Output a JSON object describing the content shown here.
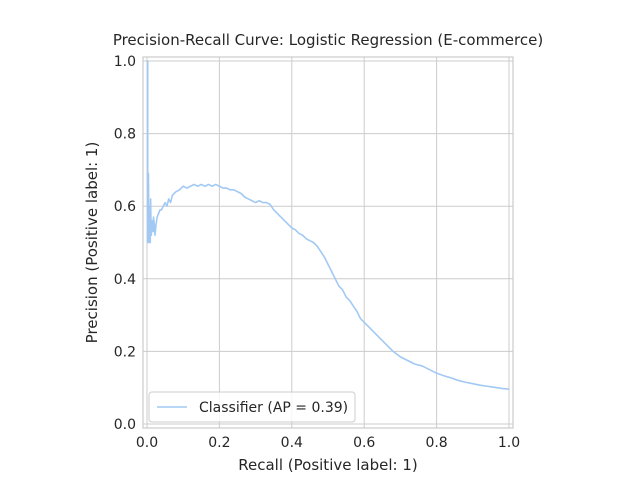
{
  "chart_data": {
    "type": "line",
    "title": "Precision-Recall Curve: Logistic Regression (E-commerce)",
    "xlabel": "Recall (Positive label: 1)",
    "ylabel": "Precision (Positive label: 1)",
    "xlim": [
      0,
      1
    ],
    "ylim": [
      0,
      1
    ],
    "xticks": [
      0.0,
      0.2,
      0.4,
      0.6,
      0.8,
      1.0
    ],
    "yticks": [
      0.0,
      0.2,
      0.4,
      0.6,
      0.8,
      1.0
    ],
    "xtick_labels": [
      "0.0",
      "0.2",
      "0.4",
      "0.6",
      "0.8",
      "1.0"
    ],
    "ytick_labels": [
      "0.0",
      "0.2",
      "0.4",
      "0.6",
      "0.8",
      "1.0"
    ],
    "grid": true,
    "legend_position": "lower-left",
    "series": [
      {
        "name": "Classifier (AP = 0.39)",
        "color": "#a1c9f4",
        "x": [
          0.0,
          0.002,
          0.002,
          0.003,
          0.003,
          0.004,
          0.005,
          0.006,
          0.006,
          0.007,
          0.008,
          0.009,
          0.01,
          0.011,
          0.012,
          0.013,
          0.015,
          0.017,
          0.018,
          0.02,
          0.022,
          0.025,
          0.028,
          0.032,
          0.036,
          0.04,
          0.045,
          0.05,
          0.055,
          0.06,
          0.065,
          0.07,
          0.08,
          0.09,
          0.1,
          0.11,
          0.12,
          0.13,
          0.14,
          0.15,
          0.16,
          0.17,
          0.18,
          0.19,
          0.2,
          0.21,
          0.22,
          0.23,
          0.24,
          0.25,
          0.26,
          0.27,
          0.28,
          0.29,
          0.3,
          0.31,
          0.32,
          0.33,
          0.34,
          0.35,
          0.36,
          0.37,
          0.38,
          0.39,
          0.4,
          0.41,
          0.42,
          0.43,
          0.44,
          0.45,
          0.46,
          0.47,
          0.48,
          0.49,
          0.5,
          0.51,
          0.52,
          0.53,
          0.54,
          0.55,
          0.56,
          0.57,
          0.58,
          0.59,
          0.6,
          0.62,
          0.64,
          0.66,
          0.68,
          0.7,
          0.72,
          0.74,
          0.76,
          0.78,
          0.8,
          0.82,
          0.84,
          0.86,
          0.88,
          0.9,
          0.92,
          0.94,
          0.96,
          0.98,
          1.0
        ],
        "y": [
          1.0,
          1.0,
          0.5,
          0.62,
          0.52,
          0.69,
          0.55,
          0.5,
          0.6,
          0.53,
          0.57,
          0.5,
          0.62,
          0.55,
          0.52,
          0.54,
          0.56,
          0.53,
          0.57,
          0.55,
          0.52,
          0.55,
          0.57,
          0.58,
          0.59,
          0.59,
          0.6,
          0.61,
          0.6,
          0.62,
          0.61,
          0.63,
          0.64,
          0.645,
          0.655,
          0.65,
          0.655,
          0.66,
          0.655,
          0.66,
          0.655,
          0.66,
          0.655,
          0.66,
          0.655,
          0.65,
          0.65,
          0.645,
          0.645,
          0.64,
          0.635,
          0.625,
          0.62,
          0.615,
          0.61,
          0.615,
          0.61,
          0.61,
          0.605,
          0.59,
          0.58,
          0.57,
          0.56,
          0.55,
          0.54,
          0.535,
          0.525,
          0.52,
          0.51,
          0.505,
          0.5,
          0.49,
          0.475,
          0.46,
          0.44,
          0.42,
          0.4,
          0.38,
          0.37,
          0.35,
          0.34,
          0.325,
          0.31,
          0.29,
          0.28,
          0.26,
          0.24,
          0.22,
          0.2,
          0.185,
          0.175,
          0.165,
          0.16,
          0.15,
          0.14,
          0.133,
          0.127,
          0.12,
          0.115,
          0.111,
          0.107,
          0.104,
          0.101,
          0.098,
          0.096
        ]
      }
    ]
  }
}
